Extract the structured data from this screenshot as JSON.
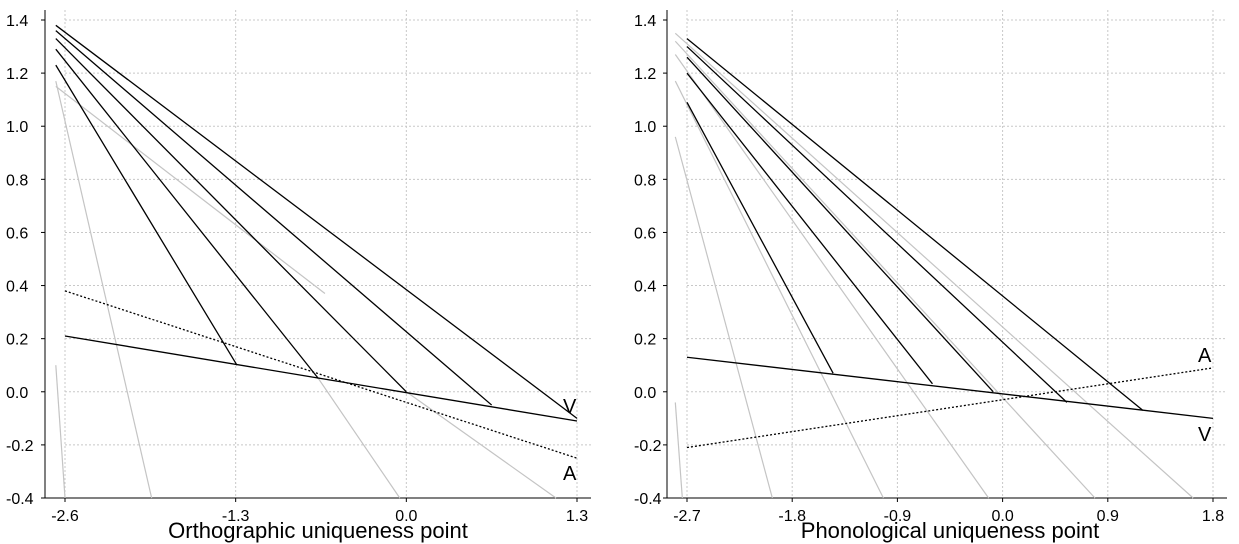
{
  "chart_data": [
    {
      "type": "line",
      "xlabel": "Orthographic uniqueness point",
      "ylabel": "",
      "xlim": [
        -2.6,
        1.3
      ],
      "ylim": [
        -0.4,
        1.4
      ],
      "xticks": [
        "-2.6",
        "-1.3",
        "0.0",
        "1.3"
      ],
      "yticks": [
        "-0.4",
        "-0.2",
        "0.0",
        "0.2",
        "0.4",
        "0.6",
        "0.8",
        "1.0",
        "1.2",
        "1.4"
      ],
      "grid": true,
      "series": [
        {
          "name": "V",
          "style": "solid",
          "color": "#000000",
          "points": [
            [
              -2.6,
              0.21
            ],
            [
              1.3,
              -0.11
            ]
          ]
        },
        {
          "name": "A",
          "style": "dotted",
          "color": "#000000",
          "points": [
            [
              -2.6,
              0.38
            ],
            [
              1.3,
              -0.25
            ]
          ]
        }
      ],
      "decay_lines_black": [
        [
          [
            -2.67,
            1.23
          ],
          [
            -1.29,
            0.1
          ]
        ],
        [
          [
            -2.67,
            1.29
          ],
          [
            -0.67,
            0.05
          ]
        ],
        [
          [
            -2.67,
            1.33
          ],
          [
            0.0,
            0.0
          ]
        ],
        [
          [
            -2.67,
            1.36
          ],
          [
            0.65,
            -0.05
          ]
        ],
        [
          [
            -2.67,
            1.38
          ],
          [
            1.3,
            -0.1
          ]
        ]
      ],
      "decay_lines_gray": [
        [
          [
            -2.67,
            0.1
          ],
          [
            -2.6,
            -0.4
          ]
        ],
        [
          [
            -2.67,
            1.17
          ],
          [
            -1.94,
            -0.4
          ]
        ],
        [
          [
            -0.67,
            0.05
          ],
          [
            -0.05,
            -0.4
          ]
        ],
        [
          [
            0.0,
            0.0
          ],
          [
            1.14,
            -0.4
          ]
        ],
        [
          [
            -2.67,
            1.15
          ],
          [
            -0.62,
            0.37
          ]
        ]
      ],
      "annotations": [
        "V",
        "A"
      ]
    },
    {
      "type": "line",
      "xlabel": "Phonological uniqueness point",
      "ylabel": "",
      "xlim": [
        -2.7,
        1.8
      ],
      "ylim": [
        -0.4,
        1.4
      ],
      "xticks": [
        "-2.7",
        "-1.8",
        "-0.9",
        "0.0",
        "0.9",
        "1.8"
      ],
      "yticks": [
        "-0.4",
        "-0.2",
        "0.0",
        "0.2",
        "0.4",
        "0.6",
        "0.8",
        "1.0",
        "1.2",
        "1.4"
      ],
      "grid": true,
      "series": [
        {
          "name": "A",
          "style": "dotted",
          "color": "#000000",
          "points": [
            [
              -2.7,
              -0.21
            ],
            [
              1.8,
              0.09
            ]
          ]
        },
        {
          "name": "V",
          "style": "solid",
          "color": "#000000",
          "points": [
            [
              -2.7,
              0.13
            ],
            [
              1.8,
              -0.1
            ]
          ]
        }
      ],
      "decay_lines_black": [
        [
          [
            -2.7,
            1.09
          ],
          [
            -1.45,
            0.07
          ]
        ],
        [
          [
            -2.7,
            1.2
          ],
          [
            -0.6,
            0.03
          ]
        ],
        [
          [
            -2.7,
            1.26
          ],
          [
            -0.08,
            0.0
          ]
        ],
        [
          [
            -2.7,
            1.3
          ],
          [
            0.55,
            -0.04
          ]
        ],
        [
          [
            -2.7,
            1.33
          ],
          [
            1.2,
            -0.07
          ]
        ]
      ],
      "decay_lines_gray": [
        [
          [
            -2.8,
            -0.04
          ],
          [
            -2.74,
            -0.4
          ]
        ],
        [
          [
            -2.8,
            0.96
          ],
          [
            -1.97,
            -0.4
          ]
        ],
        [
          [
            -2.8,
            1.17
          ],
          [
            -1.02,
            -0.4
          ]
        ],
        [
          [
            -2.8,
            1.27
          ],
          [
            -0.12,
            -0.4
          ]
        ],
        [
          [
            -2.8,
            1.32
          ],
          [
            0.79,
            -0.4
          ]
        ],
        [
          [
            -2.8,
            1.35
          ],
          [
            1.63,
            -0.4
          ]
        ]
      ],
      "annotations": [
        "A",
        "V"
      ]
    }
  ]
}
